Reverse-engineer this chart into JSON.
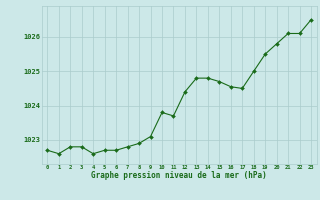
{
  "x": [
    0,
    1,
    2,
    3,
    4,
    5,
    6,
    7,
    8,
    9,
    10,
    11,
    12,
    13,
    14,
    15,
    16,
    17,
    18,
    19,
    20,
    21,
    22,
    23
  ],
  "y": [
    1022.7,
    1022.6,
    1022.8,
    1022.8,
    1022.6,
    1022.7,
    1022.7,
    1022.8,
    1022.9,
    1023.1,
    1023.8,
    1023.7,
    1024.4,
    1024.8,
    1024.8,
    1024.7,
    1024.55,
    1024.5,
    1025.0,
    1025.5,
    1025.8,
    1026.1,
    1026.1,
    1026.5
  ],
  "line_color": "#1a6b1a",
  "marker_color": "#1a6b1a",
  "bg_color": "#cce8e8",
  "grid_color": "#aacccc",
  "ylabel_values": [
    1023,
    1024,
    1025,
    1026
  ],
  "xlabel_values": [
    0,
    1,
    2,
    3,
    4,
    5,
    6,
    7,
    8,
    9,
    10,
    11,
    12,
    13,
    14,
    15,
    16,
    17,
    18,
    19,
    20,
    21,
    22,
    23
  ],
  "xlabel": "Graphe pression niveau de la mer (hPa)",
  "ylim": [
    1022.3,
    1026.9
  ],
  "xlim": [
    -0.5,
    23.5
  ],
  "tick_color": "#1a6b1a",
  "label_color": "#1a6b1a"
}
